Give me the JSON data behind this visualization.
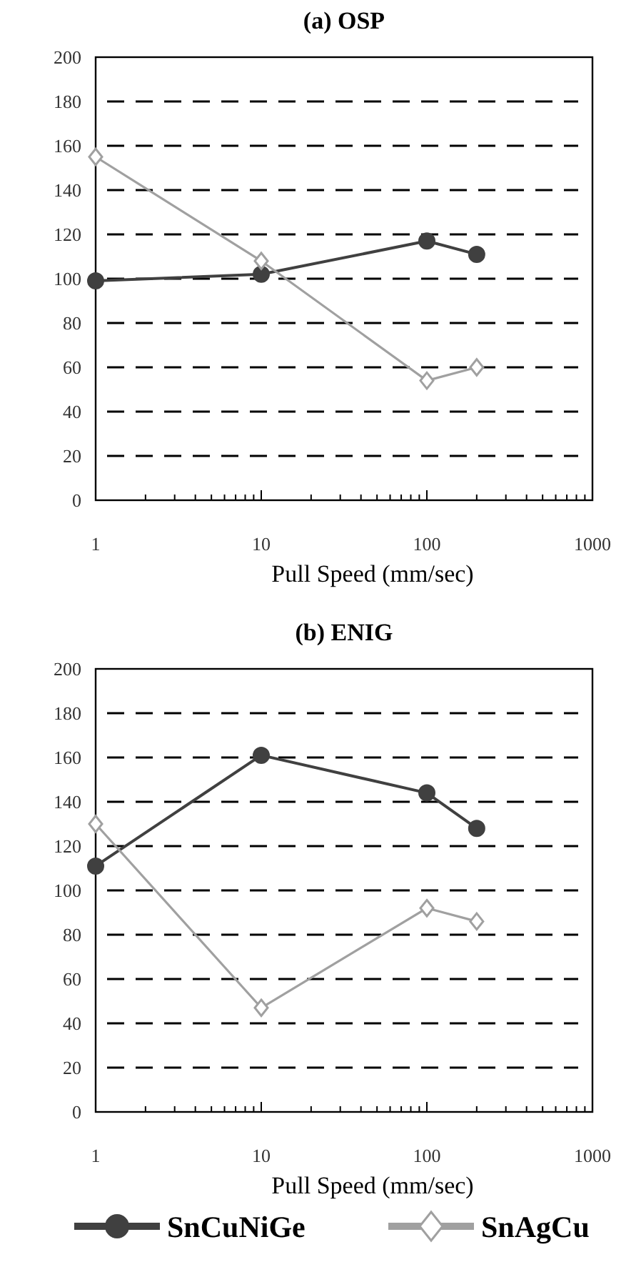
{
  "chart_data": [
    {
      "type": "line",
      "title": "(a) OSP",
      "xlabel": "Pull Speed (mm/sec)",
      "log": "x",
      "xlim": [
        1,
        1000
      ],
      "xticks": [
        1,
        10,
        100,
        1000
      ],
      "ylim": [
        0,
        200
      ],
      "yticks": [
        0,
        20,
        40,
        60,
        80,
        100,
        120,
        140,
        160,
        180,
        200
      ],
      "grid": "y",
      "line_style": "solid",
      "series": [
        {
          "color": "#404040",
          "marker": "circle",
          "x": [
            1,
            10,
            100,
            200
          ],
          "values": [
            99,
            102,
            117,
            111
          ]
        },
        {
          "color": "#a0a0a0",
          "marker": "diamond",
          "x": [
            1,
            10,
            100,
            200
          ],
          "values": [
            155,
            108,
            54,
            60
          ]
        }
      ]
    },
    {
      "type": "line",
      "title": "(b) ENIG",
      "xlabel": "Pull Speed (mm/sec)",
      "log": "x",
      "xlim": [
        1,
        1000
      ],
      "xticks": [
        1,
        10,
        100,
        1000
      ],
      "ylim": [
        0,
        200
      ],
      "yticks": [
        0,
        20,
        40,
        60,
        80,
        100,
        120,
        140,
        160,
        180,
        200
      ],
      "grid": "y",
      "line_style": "solid",
      "legend": "bottom",
      "series": [
        {
          "name": "SnCuNiGe",
          "color": "#404040",
          "marker": "circle",
          "x": [
            1,
            10,
            100,
            200
          ],
          "values": [
            111,
            161,
            144,
            128
          ]
        },
        {
          "name": "SnAgCu",
          "color": "#a0a0a0",
          "marker": "diamond",
          "x": [
            1,
            10,
            100,
            200
          ],
          "values": [
            130,
            47,
            92,
            86
          ]
        }
      ]
    }
  ]
}
